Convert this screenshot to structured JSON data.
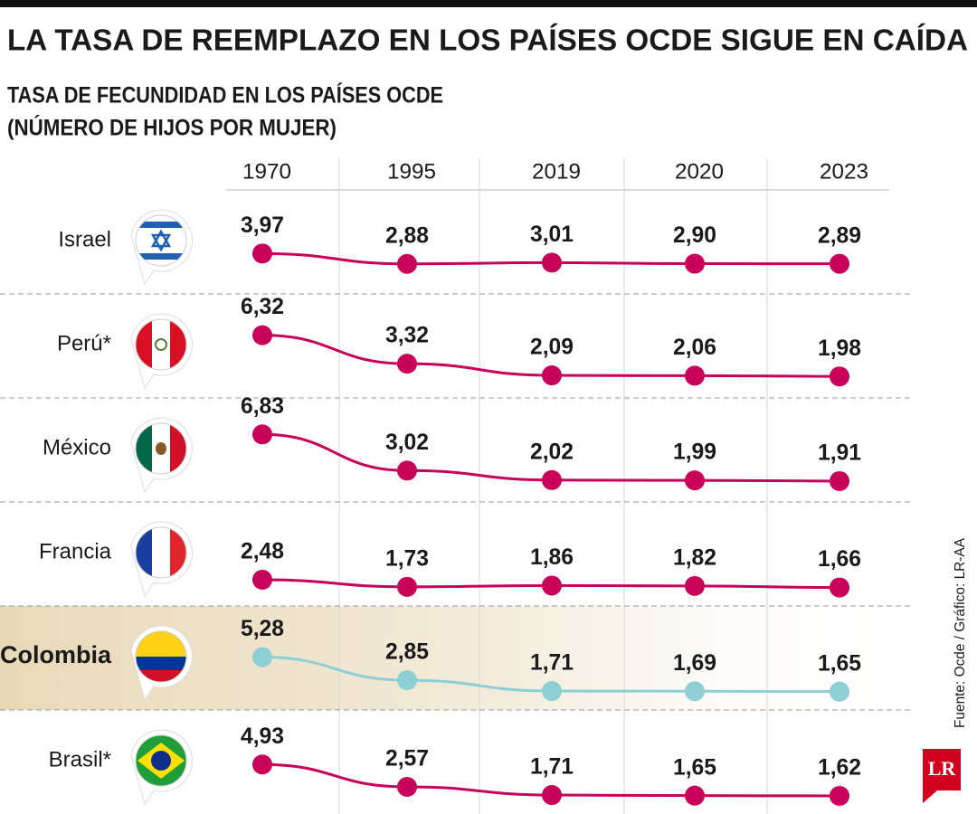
{
  "chart_data": {
    "type": "line",
    "title": "LA TASA DE REEMPLAZO EN LOS PAÍSES OCDE SIGUE EN CAÍDA",
    "subtitle_lines": [
      "TASA DE FECUNDIDAD EN LOS PAÍSES OCDE",
      "(NÚMERO DE HIJOS POR MUJER)"
    ],
    "categories": [
      "1970",
      "1995",
      "2019",
      "2020",
      "2023"
    ],
    "series": [
      {
        "name": "Israel",
        "color": "#c8005a",
        "values": [
          3.97,
          2.88,
          3.01,
          2.9,
          2.89
        ],
        "value_labels": [
          "3,97",
          "2,88",
          "3,01",
          "2,90",
          "2,89"
        ]
      },
      {
        "name": "Perú*",
        "color": "#c8005a",
        "values": [
          6.32,
          3.32,
          2.09,
          2.06,
          1.98
        ],
        "value_labels": [
          "6,32",
          "3,32",
          "2,09",
          "2,06",
          "1,98"
        ]
      },
      {
        "name": "México",
        "color": "#c8005a",
        "values": [
          6.83,
          3.02,
          2.02,
          1.99,
          1.91
        ],
        "value_labels": [
          "6,83",
          "3,02",
          "2,02",
          "1,99",
          "1,91"
        ]
      },
      {
        "name": "Francia",
        "color": "#c8005a",
        "values": [
          2.48,
          1.73,
          1.86,
          1.82,
          1.66
        ],
        "value_labels": [
          "2,48",
          "1,73",
          "1,86",
          "1,82",
          "1,66"
        ]
      },
      {
        "name": "Colombia",
        "color": "#8ecfd6",
        "highlight": true,
        "values": [
          5.28,
          2.85,
          1.71,
          1.69,
          1.65
        ],
        "value_labels": [
          "5,28",
          "2,85",
          "1,71",
          "1,69",
          "1,65"
        ]
      },
      {
        "name": "Brasil*",
        "color": "#c8005a",
        "values": [
          4.93,
          2.57,
          1.71,
          1.65,
          1.62
        ],
        "value_labels": [
          "4,93",
          "2,57",
          "1,71",
          "1,65",
          "1,62"
        ]
      }
    ],
    "source": "Fuente: Ocde / Gráfico: LR-AA",
    "logo": "LR"
  }
}
